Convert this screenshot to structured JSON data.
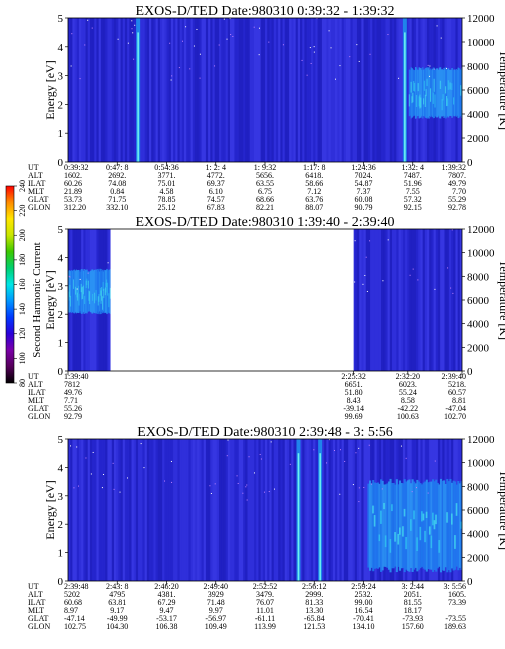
{
  "colorbar": {
    "label": "Second Harmonic Current",
    "ticks": [
      "80",
      "100",
      "120",
      "140",
      "160",
      "180",
      "200",
      "220",
      "240"
    ],
    "colors": [
      "#000000",
      "#55005a",
      "#7a00a8",
      "#2a00d8",
      "#0038ff",
      "#0096ff",
      "#00e6e6",
      "#00d070",
      "#3cc800",
      "#c8e600",
      "#ffe600",
      "#ff8c00",
      "#ff0000"
    ]
  },
  "chart_data": [
    {
      "type": "heatmap",
      "title": "EXOS-D/TED   Date:980310  0:39:32 - 1:39:32",
      "ylabel": "Energy [eV]",
      "y2label": "Temperature [K]",
      "ylim": [
        0,
        5
      ],
      "y2lim": [
        0,
        12000
      ],
      "yticks": [
        "0",
        "1",
        "2",
        "3",
        "4",
        "5"
      ],
      "y2ticks": [
        "0",
        "2000",
        "4000",
        "6000",
        "8000",
        "10000",
        "12000"
      ],
      "gaps": [],
      "bright_time_fractions": [
        0.178,
        0.855
      ],
      "warm_region": {
        "start_fraction": 0.865,
        "energy_range": [
          1.5,
          3.3
        ]
      },
      "table": {
        "row_labels": [
          "UT",
          "ALT",
          "ILAT",
          "MLT",
          "GLAT",
          "GLON"
        ],
        "columns": [
          [
            "0:39:32",
            "1602.",
            "60.26",
            "21.89",
            "53.73",
            "312.20"
          ],
          [
            "0:47: 8",
            "2692.",
            "74.08",
            "0.84",
            "71.75",
            "332.10"
          ],
          [
            "0:54:36",
            "3771.",
            "75.01",
            "4.58",
            "78.85",
            "25.12"
          ],
          [
            "1: 2: 4",
            "4772.",
            "69.37",
            "6.10",
            "74.57",
            "67.83"
          ],
          [
            "1: 9:32",
            "5656.",
            "63.55",
            "6.75",
            "68.66",
            "82.21"
          ],
          [
            "1:17: 8",
            "6418.",
            "58.66",
            "7.12",
            "63.76",
            "88.07"
          ],
          [
            "1:24:36",
            "7024.",
            "54.87",
            "7.37",
            "60.08",
            "90.79"
          ],
          [
            "1:32: 4",
            "7487.",
            "51.96",
            "7.55",
            "57.32",
            "92.15"
          ],
          [
            "1:39:32",
            "7807.",
            "49.79",
            "7.70",
            "55.29",
            "92.78"
          ]
        ]
      }
    },
    {
      "type": "heatmap",
      "title": "EXOS-D/TED   Date:980310  1:39:40 - 2:39:40",
      "ylabel": "Energy [eV]",
      "y2label": "Temperature [K]",
      "ylim": [
        0,
        5
      ],
      "y2lim": [
        0,
        12000
      ],
      "yticks": [
        "0",
        "1",
        "2",
        "3",
        "4",
        "5"
      ],
      "y2ticks": [
        "0",
        "2000",
        "4000",
        "6000",
        "8000",
        "10000",
        "12000"
      ],
      "gaps": [
        [
          0.108,
          0.725
        ]
      ],
      "bright_time_fractions": [],
      "warm_region": {
        "start_fraction": 0.0,
        "end_fraction": 0.108,
        "energy_range": [
          2.0,
          3.6
        ]
      },
      "table": {
        "row_labels": [
          "UT",
          "ALT",
          "ILAT",
          "MLT",
          "GLAT",
          "GLON"
        ],
        "columns": [
          [
            "1:39:40",
            "7812",
            "49.76",
            "7.71",
            "55.26",
            "92.79"
          ],
          [
            "2:25:32",
            "6651.",
            "51.80",
            "8.43",
            "-39.14",
            "99.69"
          ],
          [
            "2:32:20",
            "6023.",
            "55.24",
            "8.58",
            "-42.22",
            "100.63"
          ],
          [
            "2:39:40",
            "5218.",
            "60.57",
            "8.81",
            "-47.04",
            "102.70"
          ]
        ]
      }
    },
    {
      "type": "heatmap",
      "title": "EXOS-D/TED   Date:980310  2:39:48 - 3: 5:56",
      "ylabel": "Energy [eV]",
      "y2label": "Temperature [K]",
      "ylim": [
        0,
        5
      ],
      "y2lim": [
        0,
        12000
      ],
      "yticks": [
        "0",
        "1",
        "2",
        "3",
        "4",
        "5"
      ],
      "y2ticks": [
        "0",
        "2000",
        "4000",
        "6000",
        "8000",
        "10000",
        "12000"
      ],
      "gaps": [],
      "bright_time_fractions": [
        0.585,
        0.64
      ],
      "warm_region": {
        "start_fraction": 0.76,
        "energy_range": [
          0.3,
          3.6
        ]
      },
      "table": {
        "row_labels": [
          "UT",
          "ALT",
          "ILAT",
          "MLT",
          "GLAT",
          "GLON"
        ],
        "columns": [
          [
            "2:39:48",
            "5202",
            "60.68",
            "8.97",
            "-47.14",
            "102.75"
          ],
          [
            "2:43: 8",
            "4795",
            "63.81",
            "9.17",
            "-49.99",
            "104.30"
          ],
          [
            "2:46:20",
            "4381.",
            "67.29",
            "9.47",
            "-53.17",
            "106.38"
          ],
          [
            "2:49:40",
            "3929",
            "71.48",
            "9.97",
            "-56.97",
            "109.49"
          ],
          [
            "2:52:52",
            "3479.",
            "76.07",
            "11.01",
            "-61.11",
            "113.99"
          ],
          [
            "2:56:12",
            "2999.",
            "81.33",
            "13.30",
            "-65.84",
            "121.53"
          ],
          [
            "2:59:24",
            "2532.",
            "99.00",
            "16.54",
            "-70.41",
            "134.10"
          ],
          [
            "3: 2:44",
            "2051.",
            "81.55",
            "18.17",
            "-73.93",
            "157.60"
          ],
          [
            "3: 5:56",
            "1605.",
            "73.39",
            "",
            "-73.55",
            "189.63"
          ]
        ]
      }
    }
  ]
}
